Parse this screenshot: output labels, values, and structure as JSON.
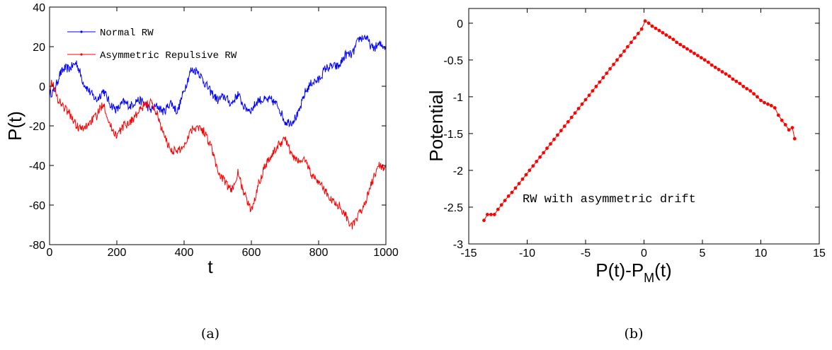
{
  "chart_data": [
    {
      "type": "line",
      "panel": "a",
      "caption": "(a)",
      "xlabel": "t",
      "ylabel": "P(t)",
      "xlim": [
        0,
        1000
      ],
      "ylim": [
        -80,
        40
      ],
      "xticks": [
        0,
        200,
        400,
        600,
        800,
        1000
      ],
      "yticks": [
        40,
        20,
        0,
        -20,
        -40,
        -60,
        -80
      ],
      "grid": false,
      "legend_position": "top-left",
      "series": [
        {
          "name": "Normal RW",
          "color": "#0000ff",
          "x": [
            0,
            15,
            30,
            45,
            60,
            80,
            100,
            120,
            140,
            160,
            180,
            200,
            220,
            240,
            260,
            280,
            300,
            320,
            340,
            360,
            380,
            400,
            420,
            440,
            460,
            480,
            500,
            520,
            540,
            560,
            580,
            600,
            620,
            640,
            660,
            680,
            700,
            720,
            740,
            760,
            780,
            800,
            820,
            840,
            860,
            880,
            900,
            920,
            940,
            960,
            980,
            1000
          ],
          "y": [
            -4,
            -2,
            6,
            9,
            9,
            12,
            2,
            -3,
            -7,
            -2,
            -9,
            -12,
            -8,
            -10,
            -7,
            -8,
            -12,
            -10,
            -13,
            -8,
            -13,
            -2,
            8,
            8,
            2,
            -3,
            -7,
            -5,
            -9,
            -4,
            -11,
            -12,
            -7,
            -7,
            -7,
            -10,
            -18,
            -18,
            -14,
            -3,
            2,
            3,
            9,
            10,
            10,
            16,
            16,
            24,
            25,
            19,
            21,
            20
          ]
        },
        {
          "name": "Asymmetric Repulsive RW",
          "color": "#ff0000",
          "x": [
            0,
            10,
            20,
            40,
            60,
            80,
            100,
            120,
            140,
            160,
            180,
            200,
            220,
            240,
            260,
            280,
            300,
            320,
            340,
            360,
            380,
            400,
            420,
            440,
            460,
            480,
            500,
            520,
            540,
            560,
            580,
            600,
            620,
            640,
            660,
            680,
            700,
            720,
            740,
            760,
            780,
            800,
            820,
            840,
            860,
            880,
            900,
            920,
            940,
            960,
            980,
            1000
          ],
          "y": [
            0,
            2,
            -5,
            -10,
            -14,
            -20,
            -22,
            -18,
            -15,
            -8,
            -20,
            -25,
            -20,
            -18,
            -14,
            -10,
            -8,
            -14,
            -25,
            -32,
            -33,
            -30,
            -22,
            -20,
            -23,
            -30,
            -43,
            -48,
            -53,
            -44,
            -55,
            -63,
            -50,
            -40,
            -35,
            -30,
            -26,
            -35,
            -38,
            -37,
            -45,
            -48,
            -53,
            -58,
            -60,
            -65,
            -71,
            -65,
            -58,
            -48,
            -40,
            -41
          ]
        }
      ]
    },
    {
      "type": "scatter",
      "panel": "b",
      "caption": "(b)",
      "xlabel_main": "P(t)-P",
      "xlabel_sub": "M",
      "xlabel_tail": "(t)",
      "ylabel": "Potential",
      "xlim": [
        -15,
        15
      ],
      "ylim": [
        -3,
        0.2
      ],
      "xticks": [
        -15,
        -10,
        -5,
        0,
        5,
        10,
        15
      ],
      "xtick_labels": [
        "-15",
        "-10",
        "-5",
        "0",
        "5",
        "10",
        "15"
      ],
      "yticks": [
        0,
        -0.5,
        -1,
        -1.5,
        -2,
        -2.5,
        -3
      ],
      "ytick_labels": [
        "0",
        "-0.5",
        "-1",
        "-1.5",
        "-2",
        "-2.5",
        "-3"
      ],
      "grid": false,
      "annotation": "RW with asymmetric drift",
      "series": [
        {
          "color": "#ff0000",
          "x": [
            -13.7,
            -13.4,
            -13.1,
            -12.8,
            -12.5,
            -12.2,
            -11.9,
            -11.6,
            -11.3,
            -11.0,
            -10.7,
            -10.4,
            -10.1,
            -9.8,
            -9.5,
            -9.2,
            -8.9,
            -8.6,
            -8.3,
            -8.0,
            -7.7,
            -7.4,
            -7.1,
            -6.8,
            -6.5,
            -6.2,
            -5.9,
            -5.6,
            -5.3,
            -5.0,
            -4.7,
            -4.4,
            -4.1,
            -3.8,
            -3.5,
            -3.2,
            -2.9,
            -2.6,
            -2.3,
            -2.0,
            -1.7,
            -1.4,
            -1.1,
            -0.8,
            -0.5,
            -0.2,
            0.1,
            0.4,
            0.7,
            1.0,
            1.3,
            1.6,
            1.9,
            2.2,
            2.5,
            2.8,
            3.1,
            3.4,
            3.7,
            4.0,
            4.3,
            4.6,
            4.9,
            5.2,
            5.5,
            5.8,
            6.1,
            6.4,
            6.7,
            7.0,
            7.3,
            7.6,
            7.9,
            8.2,
            8.5,
            8.8,
            9.1,
            9.4,
            9.7,
            10.0,
            10.3,
            10.6,
            10.9,
            11.2,
            11.5,
            11.8,
            12.1,
            12.4,
            12.7,
            12.9
          ],
          "y": [
            -2.68,
            -2.6,
            -2.6,
            -2.6,
            -2.53,
            -2.47,
            -2.41,
            -2.35,
            -2.3,
            -2.24,
            -2.18,
            -2.12,
            -2.06,
            -2.0,
            -1.94,
            -1.88,
            -1.82,
            -1.76,
            -1.7,
            -1.64,
            -1.58,
            -1.52,
            -1.46,
            -1.4,
            -1.34,
            -1.28,
            -1.22,
            -1.16,
            -1.1,
            -1.04,
            -0.98,
            -0.92,
            -0.86,
            -0.8,
            -0.74,
            -0.68,
            -0.62,
            -0.56,
            -0.5,
            -0.44,
            -0.38,
            -0.32,
            -0.26,
            -0.2,
            -0.14,
            -0.08,
            0.03,
            0.0,
            -0.04,
            -0.07,
            -0.1,
            -0.13,
            -0.16,
            -0.19,
            -0.22,
            -0.26,
            -0.29,
            -0.32,
            -0.35,
            -0.38,
            -0.41,
            -0.44,
            -0.47,
            -0.5,
            -0.53,
            -0.57,
            -0.6,
            -0.63,
            -0.66,
            -0.69,
            -0.72,
            -0.76,
            -0.79,
            -0.82,
            -0.86,
            -0.89,
            -0.92,
            -0.96,
            -1.0,
            -1.05,
            -1.08,
            -1.1,
            -1.12,
            -1.15,
            -1.25,
            -1.32,
            -1.38,
            -1.45,
            -1.42,
            -1.57
          ]
        }
      ]
    }
  ]
}
